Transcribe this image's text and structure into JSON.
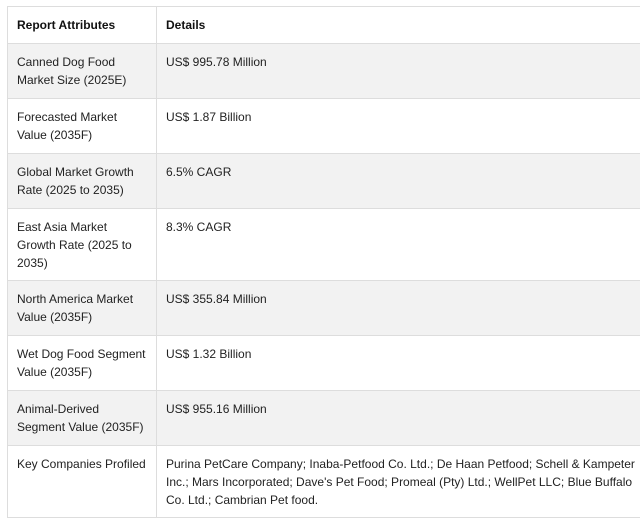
{
  "table": {
    "headers": [
      "Report Attributes",
      "Details"
    ],
    "rows": [
      {
        "attribute": "Canned Dog Food Market Size (2025E)",
        "details": "US$ 995.78 Million"
      },
      {
        "attribute": "Forecasted Market Value (2035F)",
        "details": "US$ 1.87 Billion"
      },
      {
        "attribute": "Global Market Growth Rate (2025 to 2035)",
        "details": "6.5% CAGR"
      },
      {
        "attribute": "East Asia Market Growth Rate (2025 to 2035)",
        "details": "8.3% CAGR"
      },
      {
        "attribute": "North America Market Value (2035F)",
        "details": "US$ 355.84 Million"
      },
      {
        "attribute": "Wet Dog Food Segment Value (2035F)",
        "details": "US$ 1.32 Billion"
      },
      {
        "attribute": "Animal-Derived Segment Value (2035F)",
        "details": "US$ 955.16 Million"
      },
      {
        "attribute": "Key Companies Profiled",
        "details": "Purina PetCare Company; Inaba-Petfood Co. Ltd.; De Haan Petfood; Schell & Kampeter Inc.; Mars Incorporated; Dave's Pet Food; Promeal (Pty) Ltd.; WellPet LLC; Blue Buffalo Co. Ltd.; Cambrian Pet food."
      }
    ]
  }
}
